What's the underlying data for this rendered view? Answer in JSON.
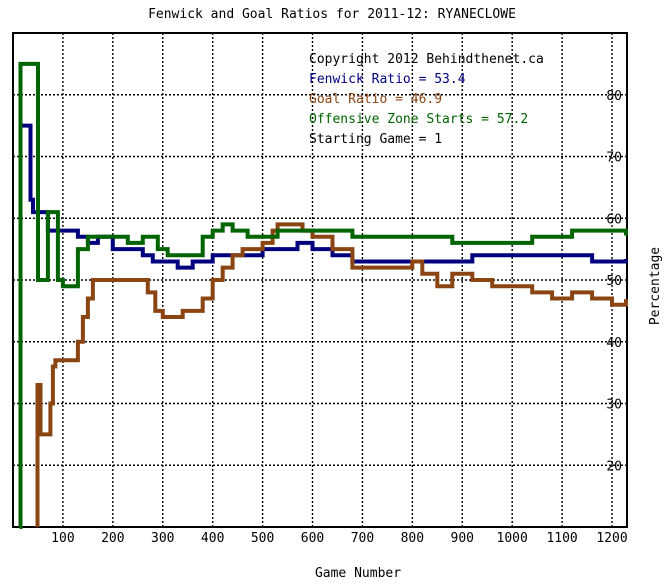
{
  "chart_data": {
    "type": "line",
    "title": "Fenwick and Goal Ratios for 2011-12: RYANECLOWE",
    "xlabel": "Game Number",
    "ylabel": "Percentage",
    "xlim": [
      0,
      1230
    ],
    "ylim": [
      10,
      90
    ],
    "x_ticks": [
      100,
      200,
      300,
      400,
      500,
      600,
      700,
      800,
      900,
      1000,
      1100,
      1200
    ],
    "y_ticks": [
      20,
      30,
      40,
      50,
      60,
      70,
      80
    ],
    "grid": true,
    "legend_position": "top-right",
    "annotations": [
      {
        "text": "Copyright 2012 Behindthenet.ca",
        "color": "#000000"
      },
      {
        "text": "Fenwick Ratio = 53.4",
        "color": "#00007f"
      },
      {
        "text": "Goal Ratio = 46.9",
        "color": "#8b4513"
      },
      {
        "text": "Offensive Zone Starts = 57.2",
        "color": "#006400"
      },
      {
        "text": "Starting Game = 1",
        "color": "#000000"
      }
    ],
    "series": [
      {
        "name": "Fenwick Ratio",
        "color": "#00007f",
        "points": [
          [
            13,
            43
          ],
          [
            15,
            75
          ],
          [
            30,
            75
          ],
          [
            35,
            63
          ],
          [
            40,
            61
          ],
          [
            60,
            61
          ],
          [
            70,
            58
          ],
          [
            100,
            58
          ],
          [
            130,
            57
          ],
          [
            150,
            56
          ],
          [
            170,
            57
          ],
          [
            200,
            55
          ],
          [
            230,
            55
          ],
          [
            260,
            54
          ],
          [
            280,
            53
          ],
          [
            300,
            53
          ],
          [
            330,
            52
          ],
          [
            360,
            53
          ],
          [
            400,
            54
          ],
          [
            430,
            54
          ],
          [
            470,
            54
          ],
          [
            500,
            55
          ],
          [
            540,
            55
          ],
          [
            570,
            56
          ],
          [
            600,
            55
          ],
          [
            640,
            54
          ],
          [
            680,
            53
          ],
          [
            720,
            53
          ],
          [
            760,
            53
          ],
          [
            800,
            53
          ],
          [
            840,
            53
          ],
          [
            880,
            53
          ],
          [
            920,
            54
          ],
          [
            960,
            54
          ],
          [
            1000,
            54
          ],
          [
            1040,
            54
          ],
          [
            1080,
            54
          ],
          [
            1120,
            54
          ],
          [
            1160,
            53
          ],
          [
            1200,
            53
          ],
          [
            1228,
            53.4
          ]
        ]
      },
      {
        "name": "Goal Ratio",
        "color": "#8b4513",
        "points": [
          [
            49,
            0
          ],
          [
            49,
            33
          ],
          [
            55,
            33
          ],
          [
            55,
            25
          ],
          [
            70,
            25
          ],
          [
            75,
            30
          ],
          [
            80,
            36
          ],
          [
            85,
            37
          ],
          [
            120,
            37
          ],
          [
            130,
            40
          ],
          [
            140,
            44
          ],
          [
            150,
            47
          ],
          [
            160,
            50
          ],
          [
            190,
            50
          ],
          [
            210,
            50
          ],
          [
            230,
            50
          ],
          [
            250,
            50
          ],
          [
            270,
            48
          ],
          [
            285,
            45
          ],
          [
            300,
            44
          ],
          [
            340,
            45
          ],
          [
            380,
            47
          ],
          [
            400,
            50
          ],
          [
            420,
            52
          ],
          [
            440,
            54
          ],
          [
            460,
            55
          ],
          [
            500,
            56
          ],
          [
            520,
            58
          ],
          [
            530,
            59
          ],
          [
            560,
            59
          ],
          [
            580,
            58
          ],
          [
            600,
            57
          ],
          [
            640,
            55
          ],
          [
            680,
            52
          ],
          [
            720,
            52
          ],
          [
            760,
            52
          ],
          [
            800,
            53
          ],
          [
            820,
            51
          ],
          [
            850,
            49
          ],
          [
            880,
            51
          ],
          [
            920,
            50
          ],
          [
            960,
            49
          ],
          [
            1000,
            49
          ],
          [
            1040,
            48
          ],
          [
            1080,
            47
          ],
          [
            1120,
            48
          ],
          [
            1160,
            47
          ],
          [
            1200,
            46
          ],
          [
            1228,
            46.9
          ]
        ]
      },
      {
        "name": "Offensive Zone Starts",
        "color": "#006400",
        "points": [
          [
            13,
            0
          ],
          [
            15,
            85
          ],
          [
            45,
            85
          ],
          [
            50,
            50
          ],
          [
            60,
            50
          ],
          [
            70,
            61
          ],
          [
            80,
            61
          ],
          [
            90,
            50
          ],
          [
            100,
            49
          ],
          [
            130,
            55
          ],
          [
            150,
            57
          ],
          [
            170,
            57
          ],
          [
            200,
            57
          ],
          [
            230,
            56
          ],
          [
            260,
            57
          ],
          [
            290,
            55
          ],
          [
            310,
            54
          ],
          [
            350,
            54
          ],
          [
            380,
            57
          ],
          [
            400,
            58
          ],
          [
            420,
            59
          ],
          [
            440,
            58
          ],
          [
            470,
            57
          ],
          [
            500,
            57
          ],
          [
            530,
            58
          ],
          [
            560,
            58
          ],
          [
            600,
            58
          ],
          [
            640,
            58
          ],
          [
            680,
            57
          ],
          [
            720,
            57
          ],
          [
            760,
            57
          ],
          [
            800,
            57
          ],
          [
            840,
            57
          ],
          [
            880,
            56
          ],
          [
            920,
            56
          ],
          [
            960,
            56
          ],
          [
            1000,
            56
          ],
          [
            1040,
            57
          ],
          [
            1080,
            57
          ],
          [
            1120,
            58
          ],
          [
            1160,
            58
          ],
          [
            1200,
            58
          ],
          [
            1228,
            57.2
          ]
        ]
      }
    ]
  }
}
